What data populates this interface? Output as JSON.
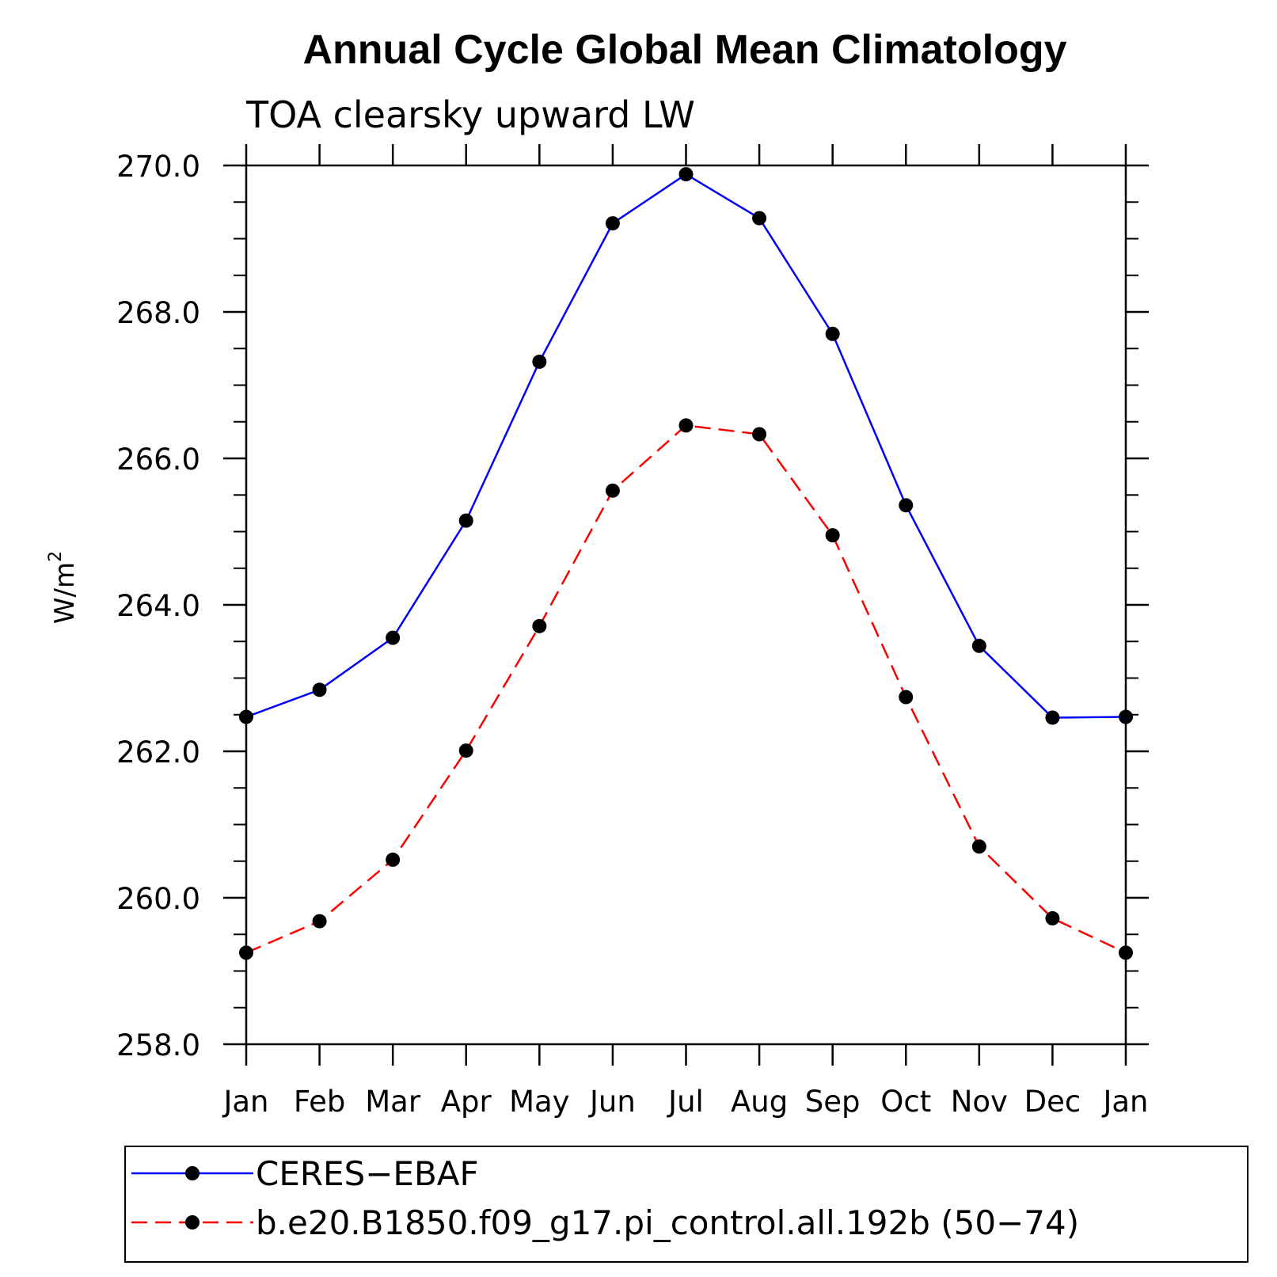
{
  "chart_data": {
    "type": "line",
    "title": "Annual Cycle Global Mean Climatology",
    "subtitle": "TOA clearsky upward LW",
    "ylabel": "W/m",
    "ylabel_superscript": "2",
    "xlabel": "",
    "categories": [
      "Jan",
      "Feb",
      "Mar",
      "Apr",
      "May",
      "Jun",
      "Jul",
      "Aug",
      "Sep",
      "Oct",
      "Nov",
      "Dec",
      "Jan"
    ],
    "ylim": [
      258.0,
      270.0
    ],
    "yticks": [
      "258.0",
      "260.0",
      "262.0",
      "264.0",
      "266.0",
      "268.0",
      "270.0"
    ],
    "ytick_values": [
      258,
      260,
      262,
      264,
      266,
      268,
      270
    ],
    "grid": false,
    "legend_position": "bottom",
    "series": [
      {
        "name": "CERES−EBAF",
        "color": "#0000ff",
        "dash": "solid",
        "marker": "filled-circle",
        "values": [
          262.47,
          262.84,
          263.55,
          265.15,
          267.32,
          269.21,
          269.88,
          269.28,
          267.7,
          265.36,
          263.44,
          262.46,
          262.47
        ]
      },
      {
        "name": "b.e20.B1850.f09_g17.pi_control.all.192b (50−74)",
        "color": "#ff0000",
        "dash": "dashed",
        "marker": "filled-circle",
        "values": [
          259.25,
          259.68,
          260.52,
          262.01,
          263.71,
          265.56,
          266.45,
          266.33,
          264.95,
          262.74,
          260.7,
          259.72,
          259.25
        ]
      }
    ]
  }
}
